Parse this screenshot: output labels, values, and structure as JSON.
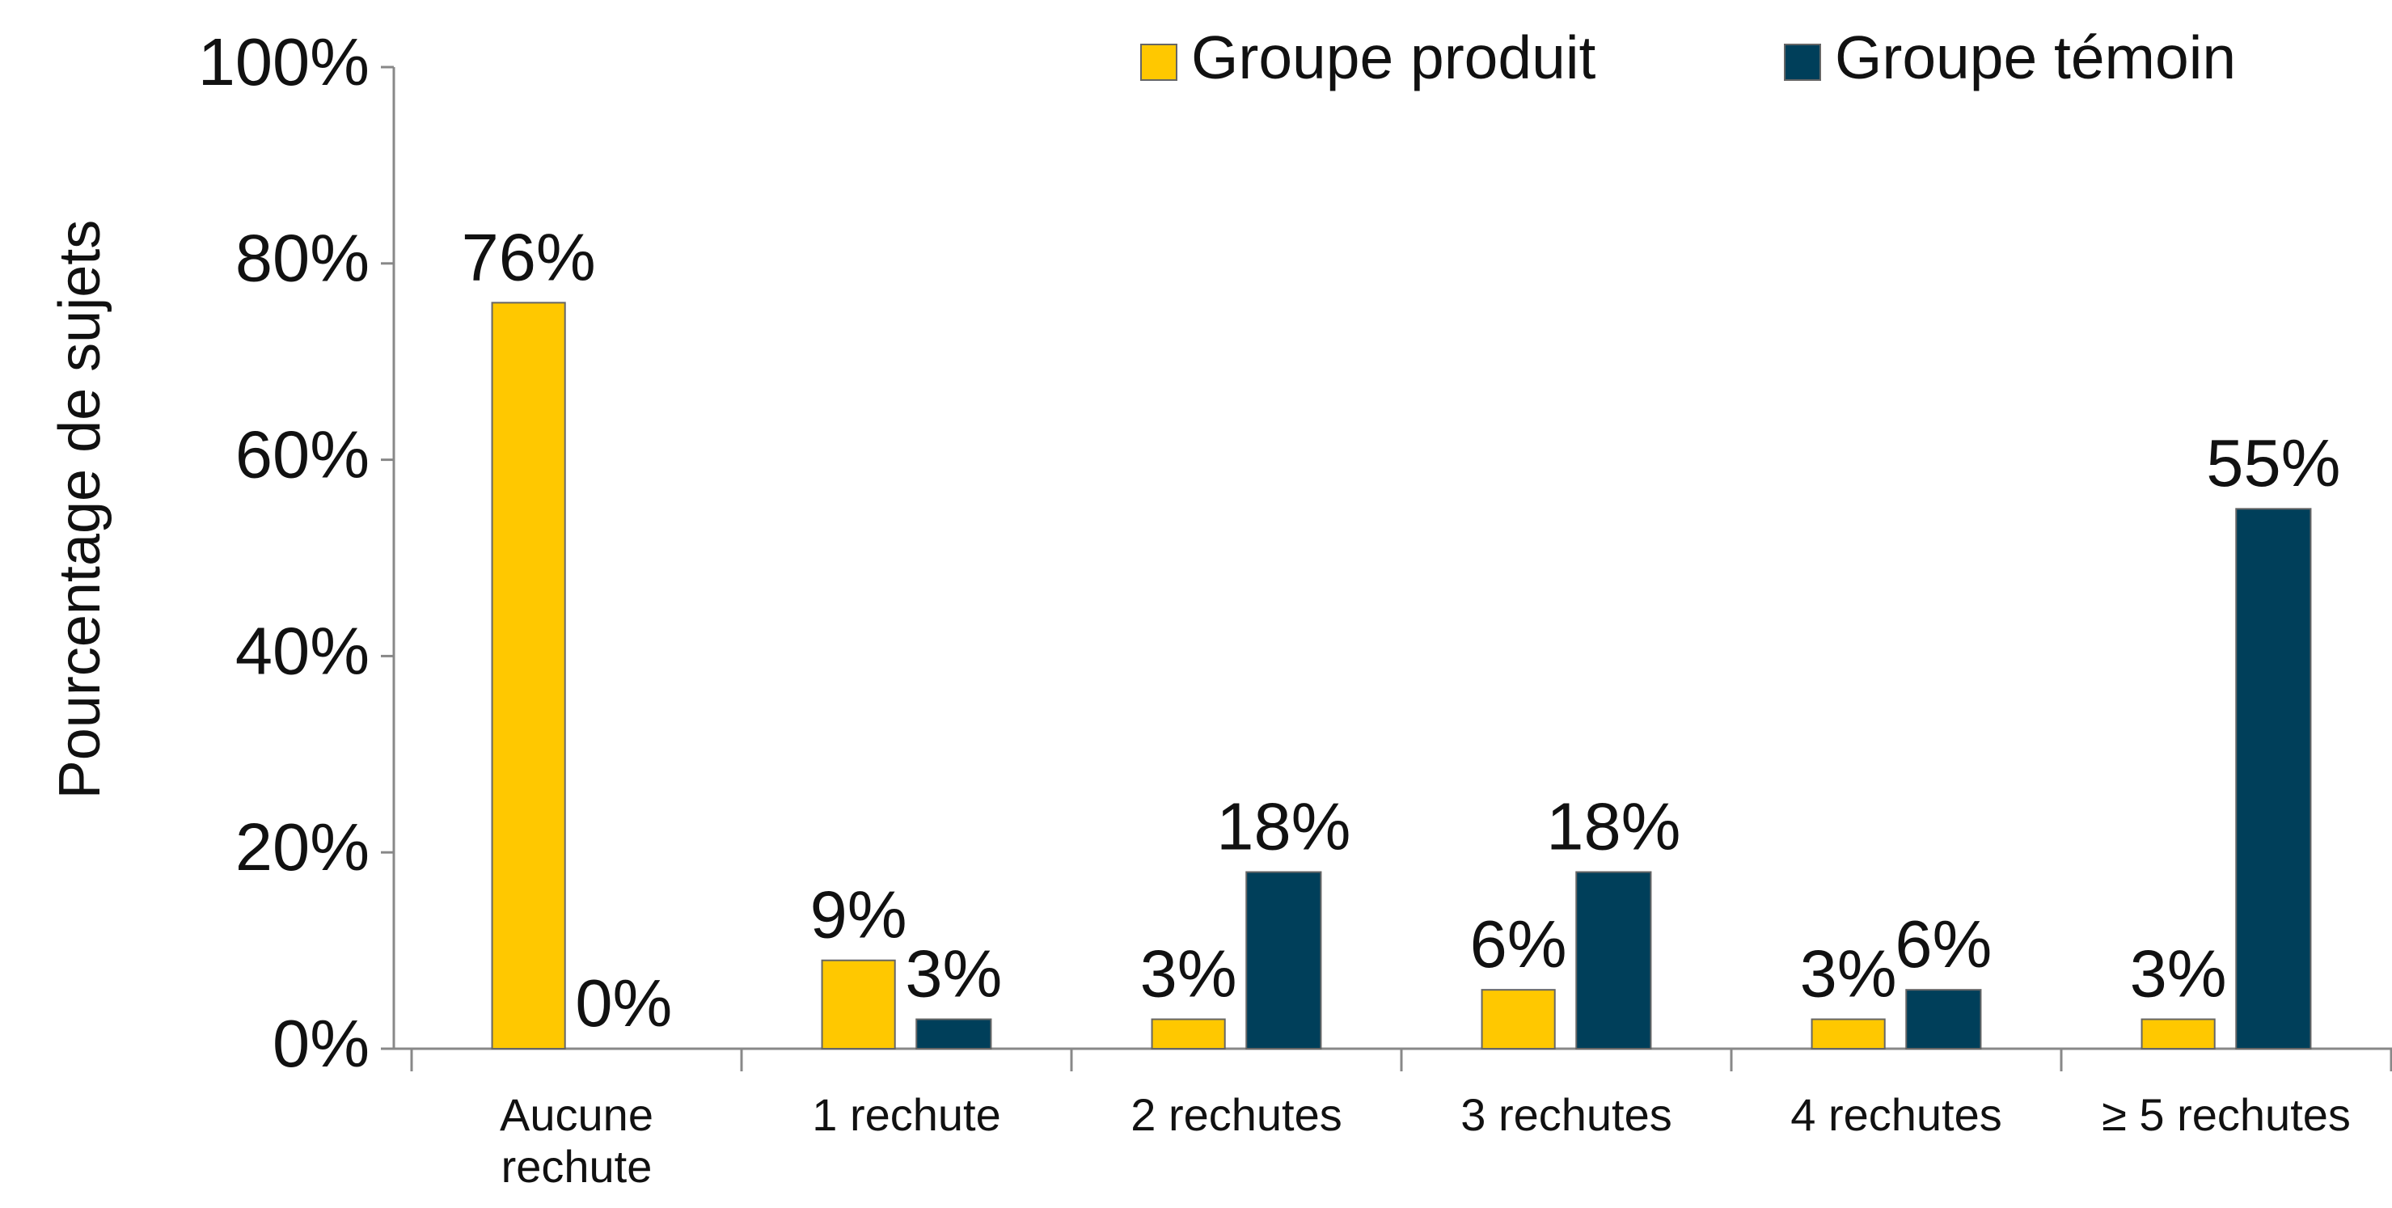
{
  "chart_data": {
    "type": "bar",
    "y_label": "Pourcentage de sujets",
    "categories": [
      "Aucune rechute",
      "1 rechute",
      "2 rechutes",
      "3 rechutes",
      "4 rechutes",
      "≥ 5 rechutes"
    ],
    "series": [
      {
        "name": "Groupe produit",
        "color": "#ffc800",
        "values": [
          76,
          9,
          3,
          6,
          3,
          3
        ],
        "value_labels": [
          "76%",
          "9%",
          "3%",
          "6%",
          "3%",
          "3%"
        ]
      },
      {
        "name": "Groupe témoin",
        "color": "#003f5a",
        "values": [
          0,
          3,
          18,
          18,
          6,
          55
        ],
        "value_labels": [
          "0%",
          "3%",
          "18%",
          "18%",
          "6%",
          "55%"
        ]
      }
    ],
    "ylim": [
      0,
      100
    ],
    "yticks": [
      {
        "value": 0,
        "label": "0%"
      },
      {
        "value": 20,
        "label": "20%"
      },
      {
        "value": 40,
        "label": "40%"
      },
      {
        "value": 60,
        "label": "60%"
      },
      {
        "value": 80,
        "label": "80%"
      },
      {
        "value": 100,
        "label": "100%"
      }
    ],
    "legend": "top"
  }
}
